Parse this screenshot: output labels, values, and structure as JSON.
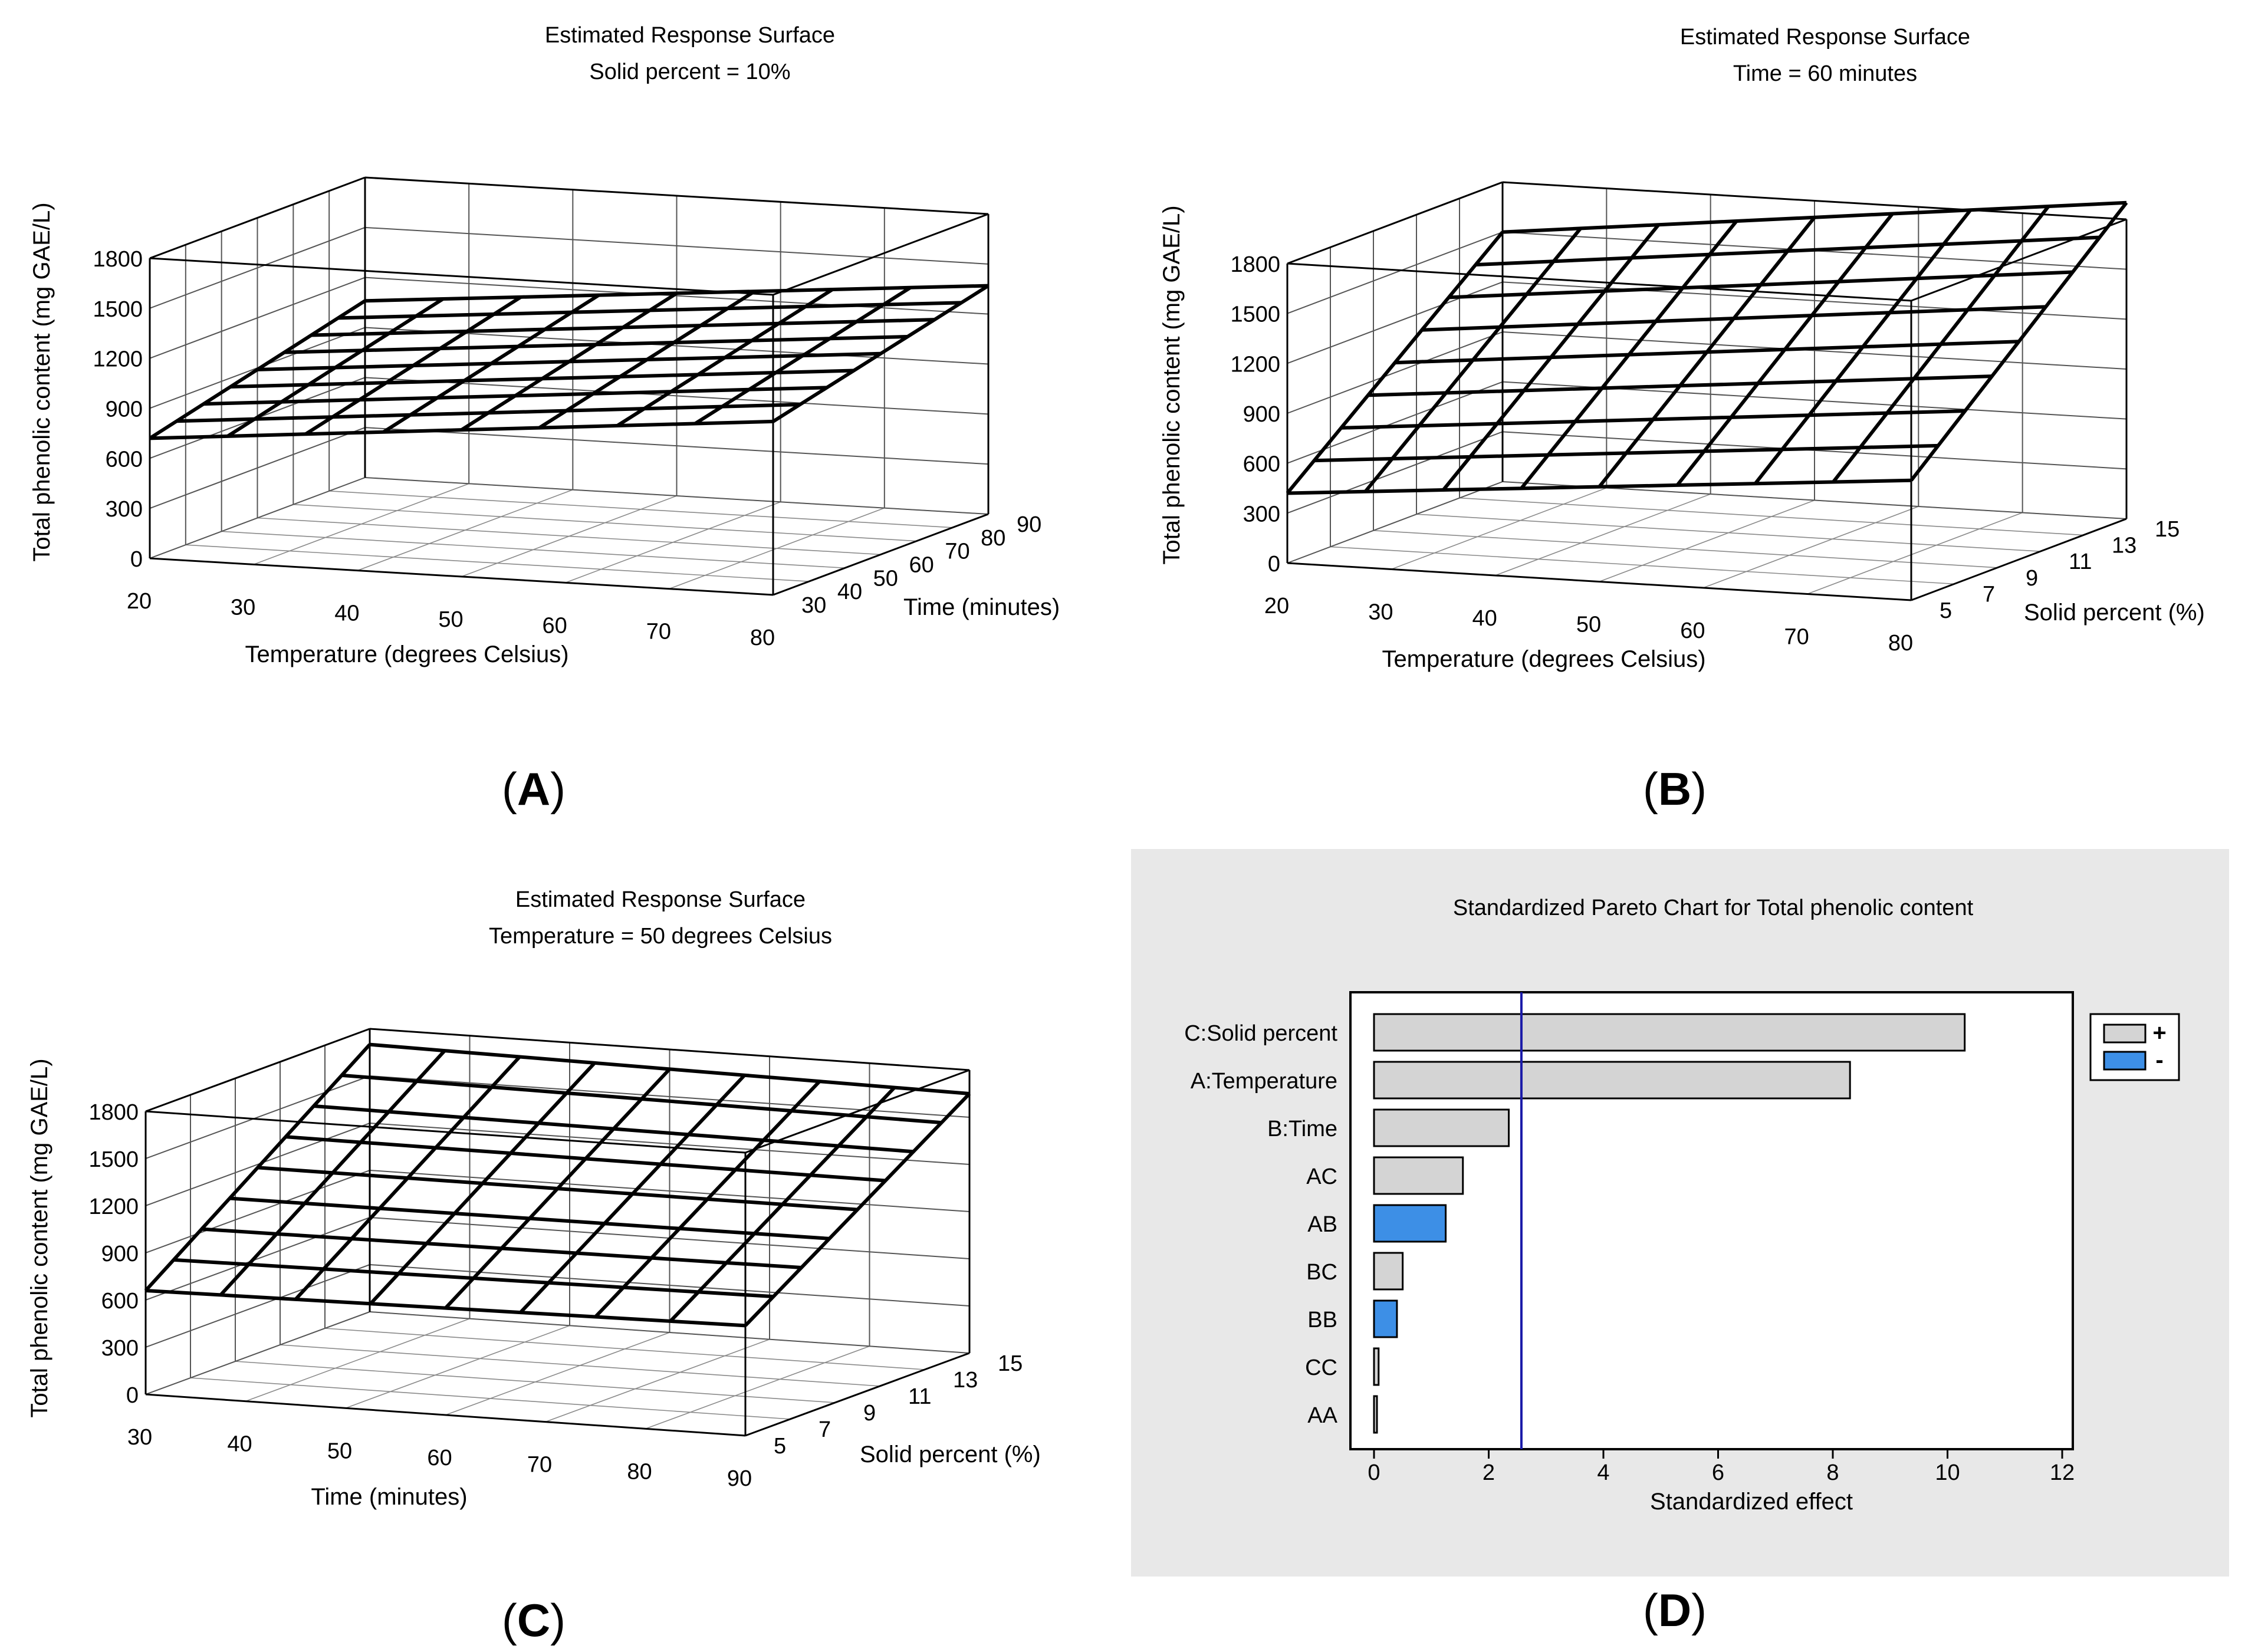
{
  "colors": {
    "grid": "#555555",
    "surface": "#000000",
    "pareto_panel_bg": "#e8e8e8",
    "bar_positive": "#d4d4d4",
    "bar_negative": "#3d8fe6",
    "reference_line": "#1a1aa8"
  },
  "chart_data": [
    {
      "type": "surface",
      "panel_label": "(A)",
      "title": "Estimated Response Surface",
      "subtitle": "Solid percent = 10%",
      "xlabel": "Temperature (degrees Celsius)",
      "ylabel": "Time (minutes)",
      "zlabel": "Total phenolic content (mg GAE/L)",
      "x_ticks": [
        "20",
        "30",
        "40",
        "50",
        "60",
        "70",
        "80"
      ],
      "y_ticks": [
        "30",
        "40",
        "50",
        "60",
        "70",
        "80",
        "90"
      ],
      "z_ticks": [
        "0",
        "300",
        "600",
        "900",
        "1200",
        "1500",
        "1800"
      ],
      "xlim": [
        20,
        80
      ],
      "ylim": [
        30,
        90
      ],
      "zlim": [
        0,
        1800
      ],
      "corner_values": {
        "x_min_y_min": 720,
        "x_max_y_min": 1040,
        "x_min_y_max": 1060,
        "x_max_y_max": 1370
      },
      "grid_cells": 8
    },
    {
      "type": "surface",
      "panel_label": "(B)",
      "title": "Estimated Response Surface",
      "subtitle": "Time = 60 minutes",
      "xlabel": "Temperature (degrees Celsius)",
      "ylabel": "Solid percent (%)",
      "zlabel": "Total phenolic content (mg GAE/L)",
      "x_ticks": [
        "20",
        "30",
        "40",
        "50",
        "60",
        "70",
        "80"
      ],
      "y_ticks": [
        "5",
        "7",
        "9",
        "11",
        "13",
        "15"
      ],
      "z_ticks": [
        "0",
        "300",
        "600",
        "900",
        "1200",
        "1500",
        "1800"
      ],
      "xlim": [
        20,
        80
      ],
      "ylim": [
        5,
        15
      ],
      "zlim": [
        0,
        1800
      ],
      "corner_values": {
        "x_min_y_min": 420,
        "x_max_y_min": 720,
        "x_min_y_max": 1500,
        "x_max_y_max": 1900
      },
      "grid_cells": 8
    },
    {
      "type": "surface",
      "panel_label": "(C)",
      "title": "Estimated Response Surface",
      "subtitle": "Temperature = 50 degrees Celsius",
      "xlabel": "Time (minutes)",
      "ylabel": "Solid percent (%)",
      "zlabel": "Total phenolic content (mg GAE/L)",
      "x_ticks": [
        "30",
        "40",
        "50",
        "60",
        "70",
        "80",
        "90"
      ],
      "y_ticks": [
        "5",
        "7",
        "9",
        "11",
        "13",
        "15"
      ],
      "z_ticks": [
        "0",
        "300",
        "600",
        "900",
        "1200",
        "1500",
        "1800"
      ],
      "xlim": [
        30,
        90
      ],
      "ylim": [
        5,
        15
      ],
      "zlim": [
        0,
        1800
      ],
      "corner_values": {
        "x_min_y_min": 660,
        "x_max_y_min": 700,
        "x_min_y_max": 1700,
        "x_max_y_max": 1650
      },
      "grid_cells": 8
    },
    {
      "type": "bar",
      "orientation": "horizontal",
      "panel_label": "(D)",
      "title": "Standardized Pareto Chart for Total phenolic content",
      "xlabel": "Standardized effect",
      "categories": [
        "C:Solid percent",
        "A:Temperature",
        "B:Time",
        "AC",
        "AB",
        "BC",
        "BB",
        "CC",
        "AA"
      ],
      "values": [
        10.3,
        8.3,
        2.35,
        1.55,
        1.25,
        0.5,
        0.4,
        0.08,
        0.04
      ],
      "signs": [
        "+",
        "+",
        "+",
        "+",
        "-",
        "+",
        "-",
        "+",
        "+"
      ],
      "x_ticks": [
        "0",
        "2",
        "4",
        "6",
        "8",
        "10",
        "12"
      ],
      "xlim": [
        0,
        12
      ],
      "reference_line": 2.57,
      "legend": [
        {
          "symbol": "+",
          "label": "+"
        },
        {
          "symbol": "-",
          "label": "-"
        }
      ],
      "legend_position": "top-right"
    }
  ]
}
